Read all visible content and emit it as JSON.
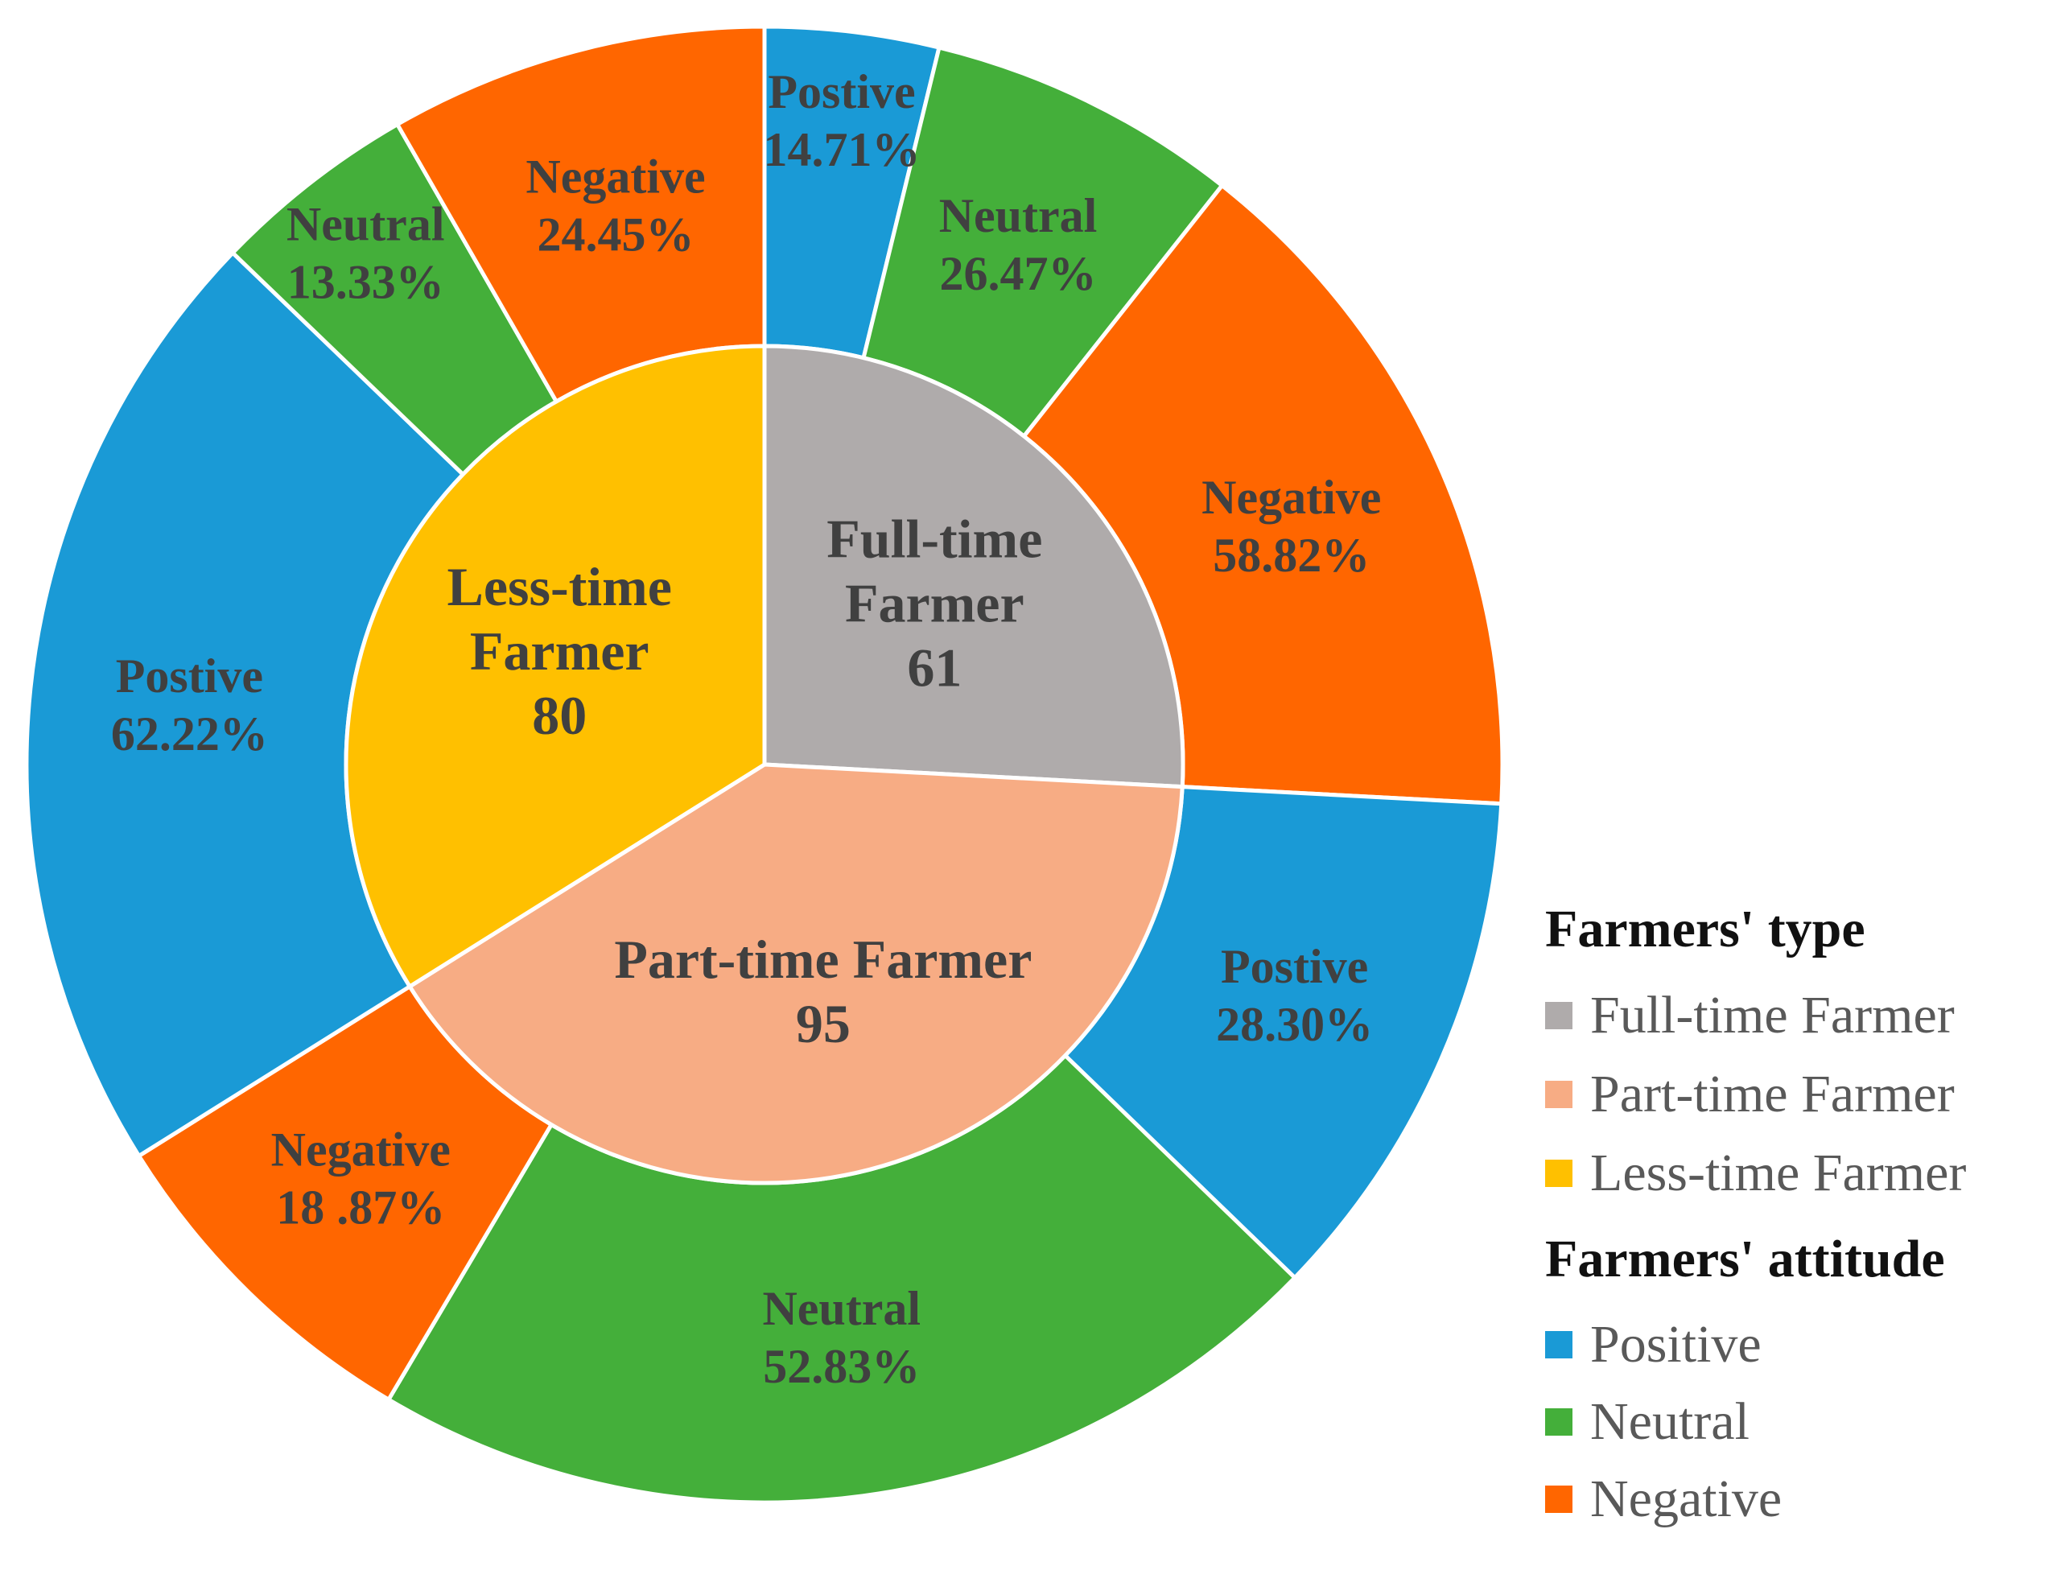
{
  "chart_data": {
    "type": "pie",
    "subtype": "sunburst",
    "inner": {
      "categories": [
        "Full-time Farmer",
        "Part-time Farmer",
        "Less-time Farmer"
      ],
      "values": [
        61,
        95,
        80
      ],
      "labels": [
        [
          "Full-time",
          "Farmer",
          "61"
        ],
        [
          "Part-time Farmer",
          "95"
        ],
        [
          "Less-time",
          "Farmer",
          "80"
        ]
      ],
      "colors": [
        "#AFABAB",
        "#F7AC84",
        "#FFC000"
      ]
    },
    "outer": [
      {
        "parent": "Full-time Farmer",
        "attitude": "Positive",
        "value": 14.71,
        "label": [
          "Postive",
          "14.71%"
        ]
      },
      {
        "parent": "Full-time Farmer",
        "attitude": "Neutral",
        "value": 26.47,
        "label": [
          "Neutral",
          "26.47%"
        ]
      },
      {
        "parent": "Full-time Farmer",
        "attitude": "Negative",
        "value": 58.82,
        "label": [
          "Negative",
          "58.82%"
        ]
      },
      {
        "parent": "Part-time Farmer",
        "attitude": "Positive",
        "value": 28.3,
        "label": [
          "Postive",
          "28.30%"
        ]
      },
      {
        "parent": "Part-time Farmer",
        "attitude": "Neutral",
        "value": 52.83,
        "label": [
          "Neutral",
          "52.83%"
        ]
      },
      {
        "parent": "Part-time Farmer",
        "attitude": "Negative",
        "value": 18.87,
        "label": [
          "Negative",
          "18 .87%"
        ]
      },
      {
        "parent": "Less-time Farmer",
        "attitude": "Positive",
        "value": 62.22,
        "label": [
          "Postive",
          "62.22%"
        ]
      },
      {
        "parent": "Less-time Farmer",
        "attitude": "Neutral",
        "value": 13.33,
        "label": [
          "Neutral",
          "13.33%"
        ]
      },
      {
        "parent": "Less-time Farmer",
        "attitude": "Negative",
        "value": 24.45,
        "label": [
          "Negative",
          "24.45%"
        ]
      }
    ],
    "attitude_colors": {
      "Positive": "#1A9AD6",
      "Neutral": "#44AF3A",
      "Negative": "#FF6600"
    },
    "legend": {
      "placement": "bottom-right",
      "groups": [
        {
          "title": "Farmers' type",
          "items": [
            {
              "label": "Full-time Farmer",
              "color": "#AFABAB"
            },
            {
              "label": "Part-time Farmer",
              "color": "#F7AC84"
            },
            {
              "label": "Less-time Farmer",
              "color": "#FFC000"
            }
          ]
        },
        {
          "title": "Farmers' attitude",
          "items": [
            {
              "label": "Positive",
              "color": "#1A9AD6"
            },
            {
              "label": "Neutral",
              "color": "#44AF3A"
            },
            {
              "label": "Negative",
              "color": "#FF6600"
            }
          ]
        }
      ]
    }
  }
}
